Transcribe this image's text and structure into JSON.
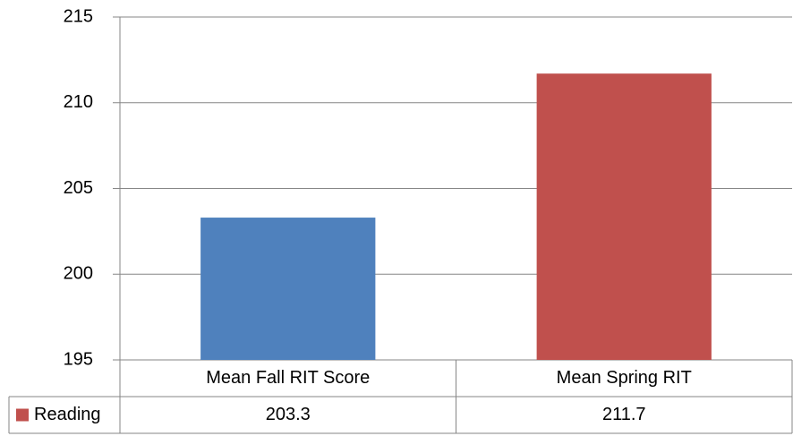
{
  "chart_data": {
    "type": "bar",
    "categories": [
      "Mean Fall RIT Score",
      "Mean Spring RIT"
    ],
    "series": [
      {
        "name": "Reading",
        "color": "#c0504d",
        "point_colors": [
          "#4f81bd",
          "#c0504d"
        ],
        "values": [
          203.3,
          211.7
        ]
      }
    ],
    "ylim": [
      195,
      215
    ],
    "yticks": [
      195,
      200,
      205,
      210,
      215
    ],
    "grid": true,
    "data_table": true
  }
}
